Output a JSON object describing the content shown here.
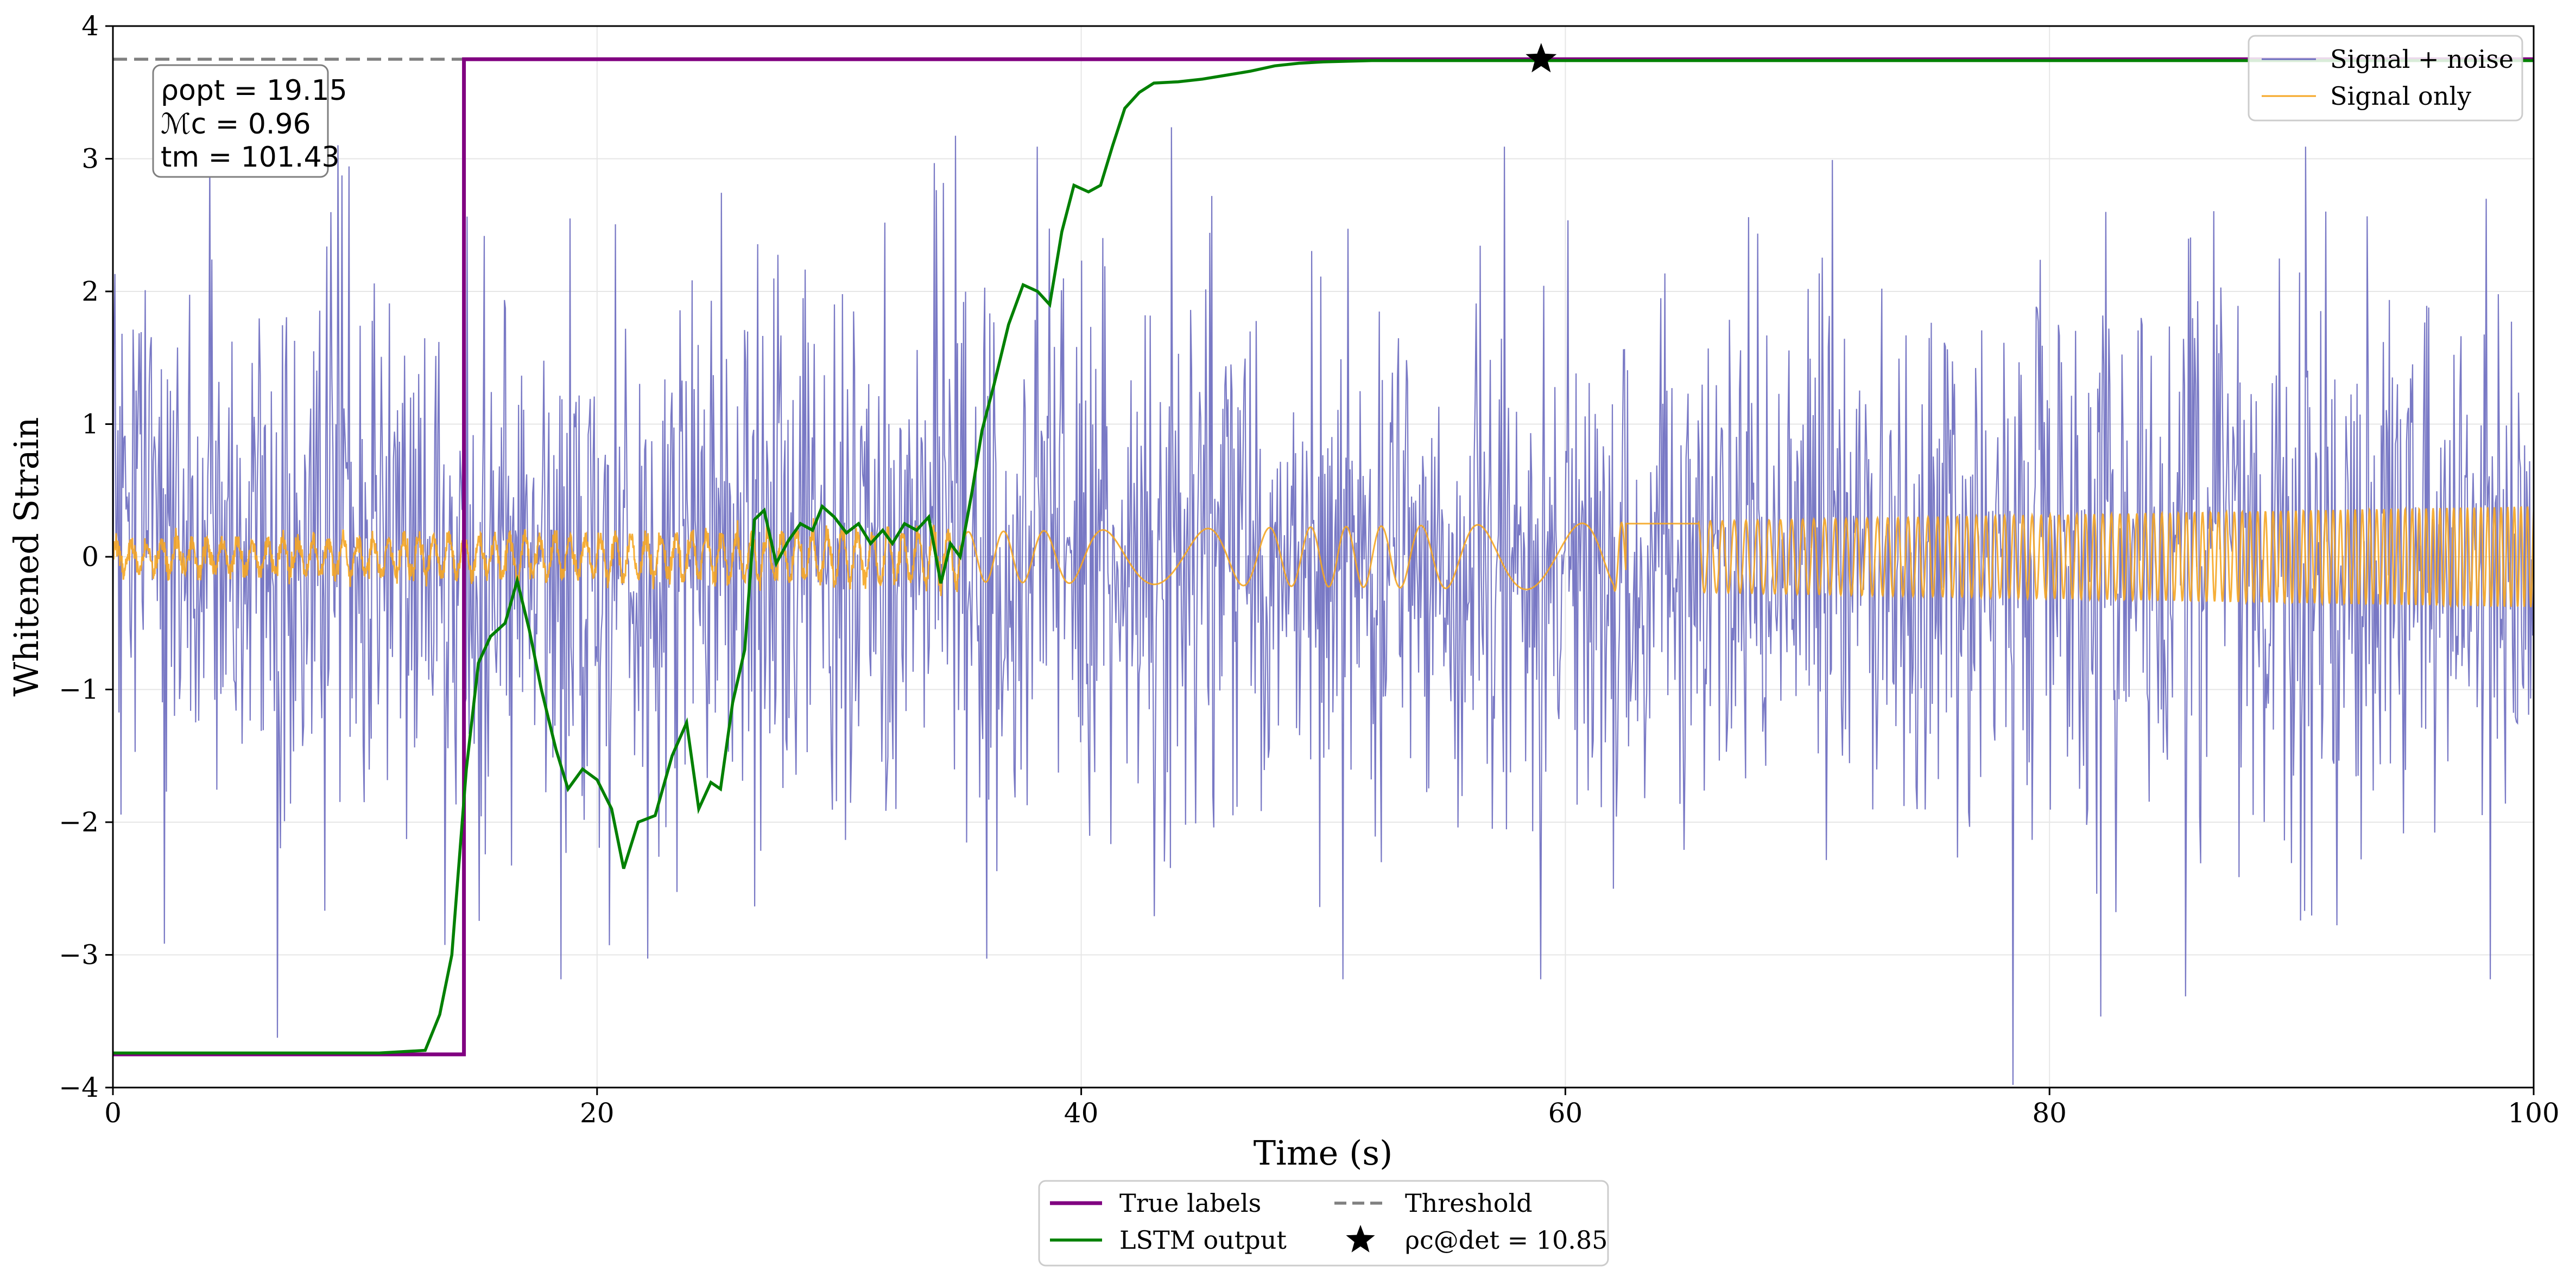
{
  "chart_data": {
    "type": "line",
    "title": "",
    "xlabel": "Time (s)",
    "ylabel": "Whitened Strain",
    "xlim": [
      0,
      100
    ],
    "ylim": [
      -4,
      4
    ],
    "xticks": [
      0,
      20,
      40,
      60,
      80,
      100
    ],
    "xtick_labels": [
      "0",
      "20",
      "40",
      "60",
      "80",
      "100"
    ],
    "yticks": [
      -4,
      -3,
      -2,
      -1,
      0,
      1,
      2,
      3,
      4
    ],
    "ytick_labels": [
      "−4",
      "−3",
      "−2",
      "−1",
      "0",
      "1",
      "2",
      "3",
      "4"
    ],
    "grid": true,
    "colors": {
      "signal_noise": "#6a6abf",
      "signal_only": "#f5a623",
      "true_labels": "#800080",
      "lstm": "#008000",
      "threshold": "#808080",
      "marker": "#000000"
    },
    "noise_series": {
      "name": "Signal + noise",
      "x_range": [
        0,
        100
      ],
      "num_points": 2400,
      "std": 1.0,
      "min": -3.98,
      "max": 3.36,
      "spike_x": [
        78.5,
        4.0,
        18.5,
        38.2,
        59.0,
        57.5,
        50.8,
        90.6,
        98.2
      ]
    },
    "signal_series": {
      "name": "Signal only",
      "x_range": [
        0,
        100
      ],
      "amp_start": 0.1,
      "amp_mid": 0.25,
      "amp_end": 0.38,
      "flat_interval": [
        62.5,
        65.5
      ],
      "flat_level": 0.25
    },
    "true_labels": {
      "name": "True labels",
      "x": [
        0,
        14.5,
        14.5,
        100
      ],
      "y": [
        -3.75,
        -3.75,
        3.75,
        3.75
      ]
    },
    "lstm_output": {
      "name": "LSTM output",
      "x": [
        0,
        11,
        12.9,
        13.5,
        14.0,
        14.6,
        15.1,
        15.6,
        16.2,
        16.7,
        17.2,
        17.7,
        18.3,
        18.8,
        19.4,
        20.0,
        20.6,
        21.1,
        21.7,
        22.4,
        23.1,
        23.7,
        24.2,
        24.7,
        25.1,
        25.6,
        26.1,
        26.5,
        26.9,
        27.4,
        27.9,
        28.4,
        28.9,
        29.3,
        29.8,
        30.3,
        30.8,
        31.3,
        31.8,
        32.2,
        32.7,
        33.2,
        33.7,
        34.2,
        34.6,
        35.0,
        35.5,
        35.9,
        36.4,
        37.0,
        37.6,
        38.2,
        38.7,
        39.2,
        39.7,
        40.3,
        40.8,
        41.3,
        41.8,
        42.4,
        43.0,
        44.0,
        45.0,
        46.0,
        47.0,
        48.0,
        49.0,
        50.0,
        52.0,
        54.0,
        56.0,
        58.0,
        59.0,
        62.0,
        70.0,
        80.0,
        90.0,
        100.0
      ],
      "y": [
        -3.74,
        -3.74,
        -3.72,
        -3.45,
        -3.0,
        -1.6,
        -0.8,
        -0.6,
        -0.5,
        -0.18,
        -0.55,
        -1.0,
        -1.45,
        -1.75,
        -1.6,
        -1.68,
        -1.9,
        -2.35,
        -2.0,
        -1.95,
        -1.5,
        -1.25,
        -1.9,
        -1.7,
        -1.75,
        -1.1,
        -0.7,
        0.28,
        0.35,
        -0.05,
        0.12,
        0.25,
        0.2,
        0.38,
        0.3,
        0.18,
        0.25,
        0.1,
        0.2,
        0.1,
        0.25,
        0.2,
        0.3,
        -0.2,
        0.1,
        0.0,
        0.5,
        0.95,
        1.3,
        1.75,
        2.05,
        2.0,
        1.9,
        2.45,
        2.8,
        2.75,
        2.8,
        3.1,
        3.38,
        3.5,
        3.57,
        3.58,
        3.6,
        3.63,
        3.66,
        3.7,
        3.72,
        3.73,
        3.74,
        3.74,
        3.74,
        3.74,
        3.74,
        3.74,
        3.74,
        3.74,
        3.74,
        3.74
      ]
    },
    "threshold": {
      "name": "Threshold",
      "y": 3.75
    },
    "detection_marker": {
      "label": "ρc@det = 10.85",
      "x": 59.0,
      "y": 3.75
    },
    "legend_upper": {
      "position": "top-right",
      "entries": [
        "Signal + noise",
        "Signal only"
      ]
    },
    "legend_lower": {
      "position": "bottom-center",
      "entries": [
        "True labels",
        "Threshold",
        "LSTM output",
        "ρc@det = 10.85"
      ]
    },
    "annotation": {
      "position": "top-left",
      "rho_opt": "ρopt = 19.15",
      "mc": "ℳc = 0.96",
      "tm": "tm = 101.43"
    }
  }
}
